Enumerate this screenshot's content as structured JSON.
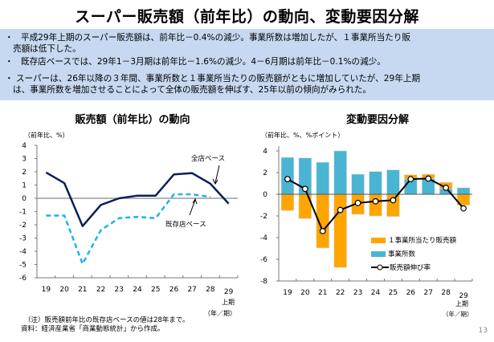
{
  "page": {
    "title": "スーパー販売額（前年比）の動向、変動要因分解",
    "page_number": "13"
  },
  "summary": {
    "bullet_char": "・",
    "bullets": [
      {
        "line1": "平成29年上期のスーパー販売額は、前年比－0.4%の減少。事業所数は増加したが、１事業所当たり販",
        "line2": "売額は低下した。"
      },
      {
        "line1": "既存店ベースでは、29年1－3月期は前年比－1.6%の減少。4－6月期は前年比－0.1%の減少。",
        "line2": ""
      },
      {
        "line1": "スーパーは、26年以降の３年間、事業所数と１事業所当たりの販売額がともに増加していたが、29年上期",
        "line2": "は、事業所数を増加させることによって全体の販売額を伸ばす、25年以前の傾向がみられた。"
      }
    ]
  },
  "notes": {
    "note1": "（注）販売額前年比の既存店ベースの値は28年まで。",
    "note2": "資料：経済産業省「商業動態統計」から作成。"
  },
  "colors": {
    "all_stores": "#0d1f5c",
    "existing_stores": "#1fb3ea",
    "per_establishment": "#ffa500",
    "establishments": "#4ab4d3",
    "growth_line": "#000000",
    "summary_bg": "#c6d9f1"
  },
  "chart_data": [
    {
      "type": "line",
      "title": "販売額（前年比）の動向",
      "ylabel": "（前年比、%）",
      "xlabel": "（年／期）",
      "categories": [
        "19",
        "20",
        "21",
        "22",
        "23",
        "24",
        "25",
        "26",
        "27",
        "28",
        "29"
      ],
      "category_sublabels": {
        "29": "上期"
      },
      "ylim": [
        -6,
        4
      ],
      "yticks": [
        4,
        3,
        2,
        1,
        0,
        -1,
        -2,
        -3,
        -4,
        -5,
        -6
      ],
      "grid": false,
      "series": [
        {
          "name": "全店ベース",
          "style": "solid",
          "values": [
            1.95,
            1.15,
            -2.1,
            -0.5,
            0.0,
            0.2,
            0.2,
            1.8,
            1.9,
            1.1,
            -0.4
          ]
        },
        {
          "name": "既存店ベース",
          "style": "dashed",
          "values": [
            -1.3,
            -1.3,
            -4.95,
            -2.4,
            -1.5,
            -1.4,
            -1.5,
            0.3,
            0.3,
            0.1,
            null
          ]
        }
      ],
      "annotations": [
        "全店ベース",
        "既存店ベース"
      ]
    },
    {
      "type": "bar",
      "stacked": true,
      "title": "変動要因分解",
      "ylabel": "（前年比、%、%ポイント）",
      "xlabel": "（年／期）",
      "categories": [
        "19",
        "20",
        "21",
        "22",
        "23",
        "24",
        "25",
        "26",
        "27",
        "28",
        "29"
      ],
      "category_sublabels": {
        "29": "上期"
      },
      "ylim": [
        -8,
        4
      ],
      "yticks": [
        4,
        2,
        0,
        -2,
        -4,
        -6,
        -8
      ],
      "grid": false,
      "legend_position": "bottom-right",
      "series": [
        {
          "name": "１事業所当たり販売額",
          "kind": "bar",
          "values": [
            -1.5,
            -2.25,
            -4.95,
            -6.75,
            -1.85,
            -2.0,
            -2.05,
            0.4,
            0.4,
            0.6,
            -1.0
          ]
        },
        {
          "name": "事業所数",
          "kind": "bar",
          "values": [
            3.4,
            3.35,
            2.95,
            4.0,
            1.85,
            2.1,
            2.25,
            1.4,
            1.45,
            0.5,
            0.6
          ]
        },
        {
          "name": "販売額伸び率",
          "kind": "line-marker",
          "values": [
            1.4,
            0.5,
            -3.4,
            -1.45,
            -0.8,
            -0.65,
            -0.55,
            1.4,
            1.45,
            0.6,
            -1.3
          ]
        }
      ]
    }
  ]
}
